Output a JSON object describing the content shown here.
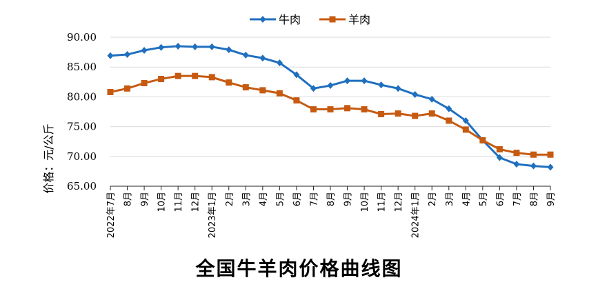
{
  "chart_data": {
    "type": "line",
    "title": "全国牛羊肉价格曲线图",
    "ylabel": "价格：元/公斤",
    "xlabel": "",
    "ylim": [
      65,
      90
    ],
    "yticks": [
      "65.00",
      "70.00",
      "75.00",
      "80.00",
      "85.00",
      "90.00"
    ],
    "grid": true,
    "legend_position": "top-center",
    "categories": [
      "2022年7月",
      "8月",
      "9月",
      "10月",
      "11月",
      "12月",
      "2023年1月",
      "2月",
      "3月",
      "4月",
      "5月",
      "6月",
      "7月",
      "8月",
      "9月",
      "10月",
      "11月",
      "12月",
      "2024年1月",
      "2月",
      "3月",
      "4月",
      "5月",
      "6月",
      "7月",
      "8月",
      "9月"
    ],
    "series": [
      {
        "name": "牛肉",
        "color": "#1f6fbf",
        "marker": "diamond",
        "values": [
          86.9,
          87.1,
          87.8,
          88.3,
          88.5,
          88.4,
          88.4,
          87.9,
          87.0,
          86.5,
          85.7,
          83.7,
          81.4,
          81.9,
          82.7,
          82.7,
          82.0,
          81.4,
          80.4,
          79.6,
          78.0,
          76.0,
          72.7,
          69.8,
          68.7,
          68.4,
          68.2
        ]
      },
      {
        "name": "羊肉",
        "color": "#c65a11",
        "marker": "square",
        "values": [
          80.8,
          81.4,
          82.3,
          83.0,
          83.5,
          83.5,
          83.3,
          82.4,
          81.6,
          81.1,
          80.6,
          79.4,
          77.9,
          77.9,
          78.1,
          77.9,
          77.1,
          77.2,
          76.8,
          77.2,
          76.0,
          74.5,
          72.7,
          71.2,
          70.6,
          70.3,
          70.3
        ]
      }
    ]
  }
}
